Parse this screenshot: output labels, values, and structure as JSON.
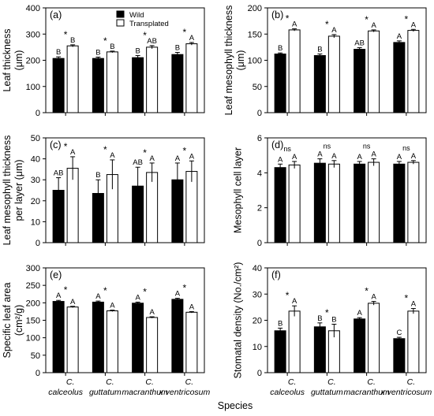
{
  "figure": {
    "xlabel": "Species",
    "legend": [
      {
        "name": "Wild",
        "color": "#000000"
      },
      {
        "name": "Transplated",
        "color": "#ffffff"
      }
    ],
    "category_lines": [
      [
        "C.",
        "calceolus"
      ],
      [
        "C.",
        "guttatum"
      ],
      [
        "C.",
        "macranthum"
      ],
      [
        "C.",
        "x ventricosum"
      ]
    ]
  },
  "chart_data": [
    {
      "type": "bar",
      "panel": "(a)",
      "ylabel": [
        "Leaf thickness",
        "(μm)"
      ],
      "ylim": [
        0,
        400
      ],
      "yticks": [
        0,
        100,
        200,
        300,
        400
      ],
      "categories": [
        "C. calceolus",
        "C. guttatum",
        "C. macranthum",
        "C. x ventricosum"
      ],
      "series": [
        {
          "name": "Wild",
          "values": [
            207,
            207,
            210,
            222
          ],
          "errors": [
            6,
            5,
            8,
            8
          ],
          "letters": [
            "B",
            "B",
            "B",
            "B"
          ]
        },
        {
          "name": "Transplated",
          "values": [
            255,
            232,
            250,
            263
          ],
          "errors": [
            4,
            3,
            6,
            5
          ],
          "letters": [
            "B",
            "B",
            "AB",
            "A"
          ]
        }
      ],
      "significance": [
        "*",
        "*",
        "*",
        "*"
      ],
      "legend": "top-left"
    },
    {
      "type": "bar",
      "panel": "(b)",
      "ylabel": [
        "Leaf mesophyll thickness",
        "(μm)"
      ],
      "ylim": [
        0,
        200
      ],
      "yticks": [
        0,
        50,
        100,
        150,
        200
      ],
      "categories": [
        "C. calceolus",
        "C. guttatum",
        "C. macranthum",
        "C. x ventricosum"
      ],
      "series": [
        {
          "name": "Wild",
          "values": [
            112,
            109,
            121,
            134
          ],
          "errors": [
            2,
            3,
            3,
            3
          ],
          "letters": [
            "B",
            "B",
            "AB",
            "A"
          ]
        },
        {
          "name": "Transplated",
          "values": [
            158,
            146,
            156,
            157
          ],
          "errors": [
            2,
            3,
            2,
            2
          ],
          "letters": [
            "A",
            "A",
            "A",
            "A"
          ]
        }
      ],
      "significance": [
        "*",
        "*",
        "*",
        "*"
      ]
    },
    {
      "type": "bar",
      "panel": "(c)",
      "ylabel": [
        "Leaf mesophyll thickness",
        "per layer (μm)"
      ],
      "ylim": [
        0,
        50
      ],
      "yticks": [
        0,
        10,
        20,
        30,
        40,
        50
      ],
      "categories": [
        "C. calceolus",
        "C. guttatum",
        "C. macranthum",
        "C. x ventricosum"
      ],
      "series": [
        {
          "name": "Wild",
          "values": [
            25,
            23.5,
            27,
            30
          ],
          "errors": [
            6,
            6.5,
            9,
            8
          ],
          "letters": [
            "AB",
            "B",
            "AB",
            "A"
          ]
        },
        {
          "name": "Transplated",
          "values": [
            35.5,
            32.5,
            33.5,
            34
          ],
          "errors": [
            5.5,
            7,
            4.5,
            5
          ],
          "letters": [
            "A",
            "A",
            "A",
            "A"
          ]
        }
      ],
      "significance": [
        "*",
        "*",
        "*",
        "*"
      ]
    },
    {
      "type": "bar",
      "panel": "(d)",
      "ylabel": [
        "Mesophyll cell layer"
      ],
      "ylim": [
        0,
        6
      ],
      "yticks": [
        0,
        2,
        4,
        6
      ],
      "categories": [
        "C. calceolus",
        "C. guttatum",
        "C. macranthum",
        "C. x ventricosum"
      ],
      "series": [
        {
          "name": "Wild",
          "values": [
            4.3,
            4.55,
            4.5,
            4.5
          ],
          "errors": [
            0.2,
            0.25,
            0.15,
            0.15
          ],
          "letters": [
            "A",
            "A",
            "A",
            "A"
          ]
        },
        {
          "name": "Transplated",
          "values": [
            4.45,
            4.5,
            4.6,
            4.6
          ],
          "errors": [
            0.2,
            0.2,
            0.2,
            0.1
          ],
          "letters": [
            "A",
            "A",
            "A",
            "A"
          ]
        }
      ],
      "significance": [
        "ns",
        "ns",
        "ns",
        "ns"
      ]
    },
    {
      "type": "bar",
      "panel": "(e)",
      "ylabel": [
        "Specific leaf area",
        "(cm²/g)"
      ],
      "ylim": [
        0,
        300
      ],
      "yticks": [
        0,
        50,
        100,
        150,
        200,
        250,
        300
      ],
      "categories": [
        "C. calceolus",
        "C. guttatum",
        "C. macranthum",
        "C. x ventricosum"
      ],
      "series": [
        {
          "name": "Wild",
          "values": [
            204,
            202,
            199,
            210
          ],
          "errors": [
            3,
            3,
            3,
            3
          ],
          "letters": [
            "A",
            "A",
            "A",
            "A"
          ]
        },
        {
          "name": "Transplated",
          "values": [
            188,
            177,
            158,
            173
          ],
          "errors": [
            2,
            2,
            2,
            2
          ],
          "letters": [
            "A",
            "A",
            "A",
            "A"
          ]
        }
      ],
      "significance": [
        "*",
        "*",
        "*",
        "*"
      ]
    },
    {
      "type": "bar",
      "panel": "(f)",
      "ylabel": [
        "Stomatal density (No./cm²)"
      ],
      "ylim": [
        0,
        40
      ],
      "yticks": [
        0,
        10,
        20,
        30,
        40
      ],
      "categories": [
        "C. calceolus",
        "C. guttatum",
        "C. macranthum",
        "C. x ventricosum"
      ],
      "series": [
        {
          "name": "Wild",
          "values": [
            16,
            17.5,
            20.5,
            13
          ],
          "errors": [
            1,
            1.5,
            0.5,
            0.5
          ],
          "letters": [
            "B",
            "B",
            "A",
            "C"
          ]
        },
        {
          "name": "Transplated",
          "values": [
            23.5,
            16,
            26.5,
            23.5
          ],
          "errors": [
            2,
            2.5,
            0.7,
            1
          ],
          "letters": [
            "A",
            "B",
            "A",
            "A"
          ]
        }
      ],
      "significance": [
        "*",
        "*",
        "*",
        "*"
      ]
    }
  ]
}
